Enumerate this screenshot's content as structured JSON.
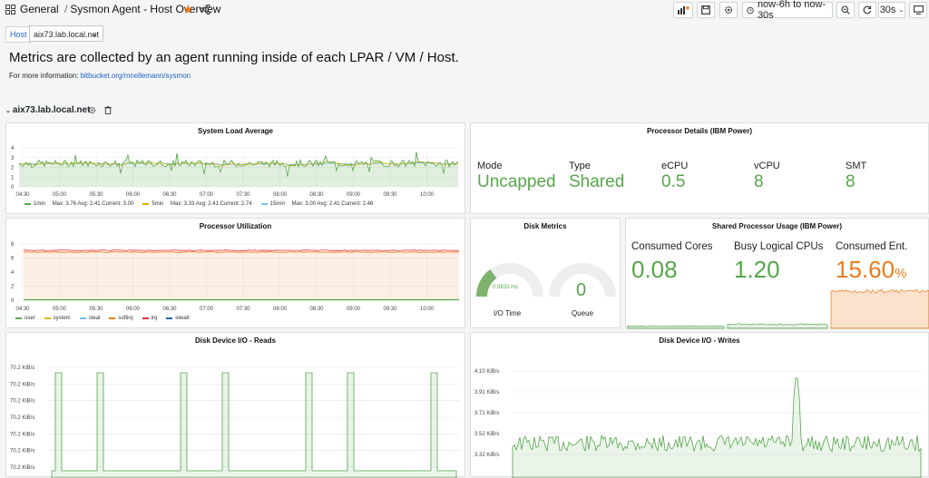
{
  "header": {
    "folder": "General",
    "separator": "/",
    "title": "Sysmon Agent - Host Overview",
    "time_range": "now-6h to now-30s",
    "refresh": "30s"
  },
  "variables": {
    "host_label": "Host",
    "host_value": "aix73.lab.local.net"
  },
  "intro": {
    "headline": "Metrics are collected by an agent running inside of each LPAR / VM / Host.",
    "info_prefix": "For more information:",
    "info_link": "bitbucket.org/mnellemann/sysmon"
  },
  "row": {
    "title": "aix73.lab.local.net"
  },
  "colors": {
    "green": "#56a64b",
    "orange": "#ec7a1b",
    "yellow": "#e0b400",
    "blue": "#73bfee",
    "red": "#e02f44",
    "darkblue": "#1f60c4",
    "accent": "#f5a623"
  },
  "time_ticks": [
    "04:30",
    "05:00",
    "05:30",
    "06:00",
    "06:30",
    "07:00",
    "07:30",
    "08:00",
    "08:30",
    "09:00",
    "09:30",
    "10:00"
  ],
  "panels": {
    "load": {
      "title": "System Load Average",
      "y_ticks": [
        "4",
        "3",
        "2",
        "1",
        "0"
      ],
      "legend": [
        {
          "name": "1min",
          "stats": "Max: 3.76  Avg: 2.41  Current: 3.00",
          "color": "#56a64b"
        },
        {
          "name": "5min",
          "stats": "Max: 3.33  Avg: 2.41  Current: 2.74",
          "color": "#e0b400"
        },
        {
          "name": "15min",
          "stats": "Max: 3.00  Avg: 2.41  Current: 2.48",
          "color": "#73bfee"
        }
      ]
    },
    "processor_details": {
      "title": "Processor Details (IBM Power)",
      "stats": [
        {
          "label": "Mode",
          "value": "Uncapped"
        },
        {
          "label": "Type",
          "value": "Shared"
        },
        {
          "label": "eCPU",
          "value": "0.5"
        },
        {
          "label": "vCPU",
          "value": "8"
        },
        {
          "label": "SMT",
          "value": "8"
        }
      ]
    },
    "utilization": {
      "title": "Processor Utilization",
      "y_ticks": [
        "8",
        "6",
        "4",
        "2",
        "0"
      ],
      "legend": [
        {
          "name": "user",
          "color": "#56a64b"
        },
        {
          "name": "system",
          "color": "#e0b400"
        },
        {
          "name": "steal",
          "color": "#73bfee"
        },
        {
          "name": "softirq",
          "color": "#ec7a1b"
        },
        {
          "name": "irq",
          "color": "#e02f44"
        },
        {
          "name": "iowait",
          "color": "#1f60c4"
        }
      ]
    },
    "disk_metrics": {
      "title": "Disk Metrics",
      "io_time_value": "0.0833 ms",
      "io_time_fraction": 0.3,
      "io_time_label": "I/O Time",
      "queue_value": "0",
      "queue_label": "Queue"
    },
    "shared_usage": {
      "title": "Shared Processor Usage (IBM Power)",
      "stats": [
        {
          "label": "Consumed Cores",
          "value": "0.08",
          "unit": ""
        },
        {
          "label": "Busy Logical CPUs",
          "value": "1.20",
          "unit": ""
        },
        {
          "label": "Consumed Ent.",
          "value": "15.60",
          "unit": "%"
        }
      ]
    },
    "reads": {
      "title": "Disk Device I/O - Reads",
      "y_ticks": [
        "70.2 KiB/s",
        "70.2 KiB/s",
        "70.2 KiB/s",
        "70.2 KiB/s",
        "70.2 KiB/s",
        "70.2 KiB/s",
        "70.2 KiB/s"
      ]
    },
    "writes": {
      "title": "Disk Device I/O - Writes",
      "y_ticks": [
        "4.10 KiB/s",
        "3.91 KiB/s",
        "3.71 KiB/s",
        "3.52 KiB/s",
        "3.32 KiB/s"
      ]
    }
  }
}
